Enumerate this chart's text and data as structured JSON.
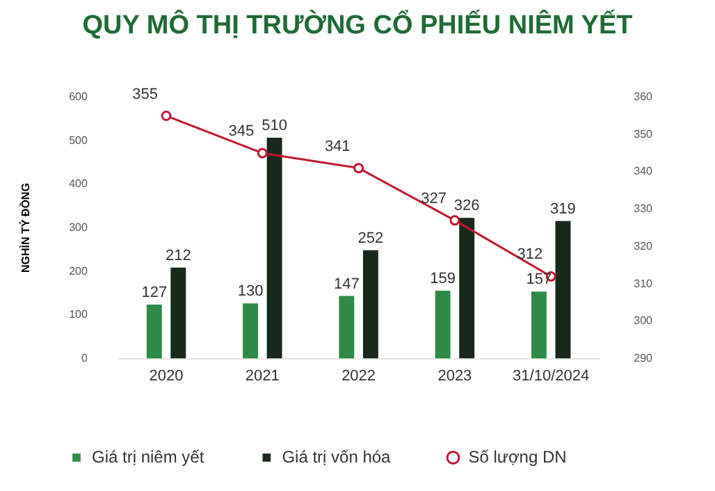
{
  "chart_data": {
    "type": "bar",
    "title": "QUY MÔ THỊ TRƯỜNG CỔ PHIẾU NIÊM YẾT",
    "ylabel": "NGHÌN TỶ ĐỒNG",
    "categories": [
      "2020",
      "2021",
      "2022",
      "2023",
      "31/10/2024"
    ],
    "series": [
      {
        "name": "Giá trị niêm yết",
        "color": "#2e8b47",
        "values": [
          127,
          130,
          147,
          159,
          157
        ]
      },
      {
        "name": "Giá trị vốn hóa",
        "color": "#17291b",
        "values": [
          212,
          510,
          252,
          326,
          319
        ]
      },
      {
        "name": "Số lượng DN",
        "type": "line",
        "axis": "y2",
        "color": "#c0182f",
        "values": [
          355,
          345,
          341,
          327,
          312
        ]
      }
    ],
    "ylim": [
      0,
      600
    ],
    "yticks": [
      0,
      100,
      200,
      300,
      400,
      500,
      600
    ],
    "y2lim": [
      290,
      360
    ],
    "y2ticks": [
      290,
      300,
      310,
      320,
      330,
      340,
      350,
      360
    ],
    "grid": false,
    "legend": "bottom",
    "marker": "circle",
    "line_style": "solid",
    "data_labels": true
  }
}
